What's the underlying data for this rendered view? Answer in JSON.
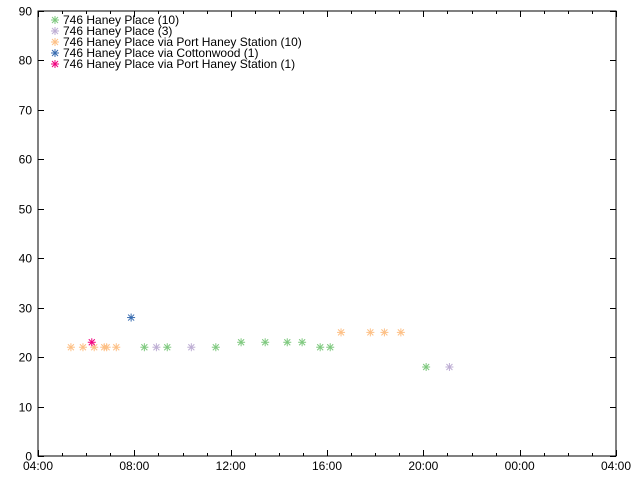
{
  "chart_data": {
    "type": "scatter",
    "title": "",
    "xlabel": "",
    "ylabel": "",
    "x_unit": "hours",
    "xlim": [
      "04:00",
      "04:00 (+1 day)"
    ],
    "ylim": [
      0,
      90
    ],
    "x_ticks": [
      "04:00",
      "08:00",
      "12:00",
      "16:00",
      "20:00",
      "00:00",
      "04:00"
    ],
    "y_ticks": [
      "0",
      "10",
      "20",
      "30",
      "40",
      "50",
      "60",
      "70",
      "80",
      "90"
    ],
    "grid": false,
    "legend_position": "top-left",
    "marker": "asterisk",
    "series": [
      {
        "name": "746 Haney Place (10)",
        "color": "#7fc97f",
        "points": [
          [
            "08:25",
            22
          ],
          [
            "09:22",
            22
          ],
          [
            "11:23",
            22
          ],
          [
            "12:26",
            23
          ],
          [
            "13:26",
            23
          ],
          [
            "14:21",
            23
          ],
          [
            "14:58",
            23
          ],
          [
            "15:43",
            22
          ],
          [
            "16:08",
            22
          ],
          [
            "20:07",
            18
          ]
        ]
      },
      {
        "name": "746 Haney Place (3)",
        "color": "#beaed4",
        "points": [
          [
            "08:55",
            22
          ],
          [
            "10:22",
            22
          ],
          [
            "21:05",
            18
          ]
        ]
      },
      {
        "name": "746 Haney Place via Port Haney Station (10)",
        "color": "#fdc086",
        "points": [
          [
            "05:22",
            22
          ],
          [
            "05:52",
            22
          ],
          [
            "06:20",
            22
          ],
          [
            "06:45",
            22
          ],
          [
            "06:51",
            22
          ],
          [
            "07:15",
            22
          ],
          [
            "16:35",
            25
          ],
          [
            "17:48",
            25
          ],
          [
            "18:23",
            25
          ],
          [
            "19:04",
            25
          ]
        ]
      },
      {
        "name": "746 Haney Place via Cottonwood (1)",
        "color": "#386cb0",
        "points": [
          [
            "07:52",
            28
          ]
        ]
      },
      {
        "name": "746 Haney Place via Port Haney Station (1)",
        "color": "#f0027f",
        "points": [
          [
            "06:14",
            23
          ]
        ]
      }
    ]
  }
}
